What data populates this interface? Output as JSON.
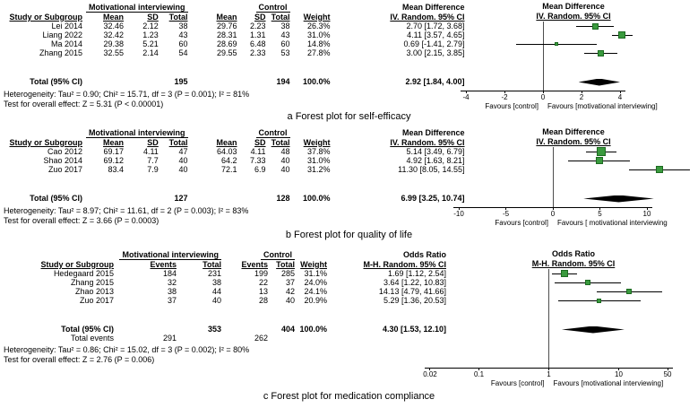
{
  "chart_data": [
    {
      "type": "forest",
      "outcome": "self-efficacy",
      "caption": "a Forest plot for self-efficacy",
      "group1": "Motivational interviewing",
      "group2": "Control",
      "columns": {
        "study": "Study or Subgroup",
        "mean": "Mean",
        "sd": "SD",
        "total": "Total",
        "weight": "Weight"
      },
      "effect_header": "Mean Difference",
      "effect_sub": "IV. Random. 95% CI",
      "rows": [
        {
          "study": "Lei 2014",
          "mean1": "32.46",
          "sd1": "2.12",
          "total1": "38",
          "mean2": "29.76",
          "sd2": "2.23",
          "total2": "38",
          "weight": "26.3%",
          "effect_text": "2.70 [1.72, 3.68]",
          "est": 2.7,
          "lo": 1.72,
          "hi": 3.68,
          "weight_pct": 26.3
        },
        {
          "study": "Liang 2022",
          "mean1": "32.42",
          "sd1": "1.23",
          "total1": "43",
          "mean2": "28.31",
          "sd2": "1.31",
          "total2": "43",
          "weight": "31.0%",
          "effect_text": "4.11 [3.57, 4.65]",
          "est": 4.11,
          "lo": 3.57,
          "hi": 4.65,
          "weight_pct": 31.0
        },
        {
          "study": "Ma 2014",
          "mean1": "29.38",
          "sd1": "5.21",
          "total1": "60",
          "mean2": "28.69",
          "sd2": "6.48",
          "total2": "60",
          "weight": "14.8%",
          "effect_text": "0.69 [-1.41, 2.79]",
          "est": 0.69,
          "lo": -1.41,
          "hi": 2.79,
          "weight_pct": 14.8
        },
        {
          "study": "Zhang 2015",
          "mean1": "32.55",
          "sd1": "2.14",
          "total1": "54",
          "mean2": "29.55",
          "sd2": "2.33",
          "total2": "53",
          "weight": "27.8%",
          "effect_text": "3.00 [2.15, 3.85]",
          "est": 3.0,
          "lo": 2.15,
          "hi": 3.85,
          "weight_pct": 27.8
        }
      ],
      "total_row": {
        "label": "Total (95% CI)",
        "total1": "195",
        "total2": "194",
        "weight": "100.0%",
        "effect_text": "2.92 [1.84, 4.00]",
        "est": 2.92,
        "lo": 1.84,
        "hi": 4.0
      },
      "heterogeneity": "Heterogeneity: Tau² = 0.90; Chi² = 15.71, df = 3 (P = 0.001); I² = 81%",
      "overall_test": "Test for overall effect: Z = 5.31 (P < 0.00001)",
      "axis": {
        "scale": "linear",
        "line_at": 0,
        "ticks": [
          "-4",
          "-2",
          "0",
          "2",
          "4"
        ],
        "tick_values": [
          -4,
          -2,
          0,
          2,
          4
        ]
      },
      "favours_left": "Favours [control]",
      "favours_right": "Favours [motivational interviewing]"
    },
    {
      "type": "forest",
      "outcome": "quality of life",
      "caption": "b Forest plot for quality of life",
      "group1": "Motivational interviewing",
      "group2": "Control",
      "columns": {
        "study": "Study or Subgroup",
        "mean": "Mean",
        "sd": "SD",
        "total": "Total",
        "weight": "Weight"
      },
      "effect_header": "Mean Difference",
      "effect_sub": "IV. Random. 95% CI",
      "rows": [
        {
          "study": "Cao 2012",
          "mean1": "69.17",
          "sd1": "4.11",
          "total1": "47",
          "mean2": "64.03",
          "sd2": "4.11",
          "total2": "48",
          "weight": "37.8%",
          "effect_text": "5.14 [3.49, 6.79]",
          "est": 5.14,
          "lo": 3.49,
          "hi": 6.79,
          "weight_pct": 37.8
        },
        {
          "study": "Shao 2014",
          "mean1": "69.12",
          "sd1": "7.7",
          "total1": "40",
          "mean2": "64.2",
          "sd2": "7.33",
          "total2": "40",
          "weight": "31.0%",
          "effect_text": "4.92 [1.63, 8.21]",
          "est": 4.92,
          "lo": 1.63,
          "hi": 8.21,
          "weight_pct": 31.0
        },
        {
          "study": "Zuo 2017",
          "mean1": "83.4",
          "sd1": "7.9",
          "total1": "40",
          "mean2": "72.1",
          "sd2": "6.9",
          "total2": "40",
          "weight": "31.2%",
          "effect_text": "11.30 [8.05, 14.55]",
          "est": 11.3,
          "lo": 8.05,
          "hi": 14.55,
          "weight_pct": 31.2
        }
      ],
      "total_row": {
        "label": "Total (95% CI)",
        "total1": "127",
        "total2": "128",
        "weight": "100.0%",
        "effect_text": "6.99 [3.25, 10.74]",
        "est": 6.99,
        "lo": 3.25,
        "hi": 10.74
      },
      "heterogeneity": "Heterogeneity: Tau² = 8.97; Chi² = 11.61, df = 2 (P = 0.003); I² = 83%",
      "overall_test": "Test for overall effect: Z = 3.66 (P = 0.0003)",
      "axis": {
        "scale": "linear",
        "line_at": 0,
        "ticks": [
          "-10",
          "-5",
          "0",
          "5",
          "10"
        ],
        "tick_values": [
          -10,
          -5,
          0,
          5,
          10
        ]
      },
      "favours_left": "Favours [control]",
      "favours_right": "Favours [ motivational interviewing"
    },
    {
      "type": "forest",
      "outcome": "medication compliance",
      "caption": "c Forest plot for medication compliance",
      "group1": "Motivational interviewing",
      "group2": "Control",
      "columns": {
        "study": "Study or Subgroup",
        "events": "Events",
        "total": "Total",
        "weight": "Weight"
      },
      "effect_header": "Odds Ratio",
      "effect_sub": "M-H. Random. 95% CI",
      "rows": [
        {
          "study": "Hedegaard 2015",
          "events1": "184",
          "total1": "231",
          "events2": "199",
          "total2": "285",
          "weight": "31.1%",
          "effect_text": "1.69 [1.12, 2.54]",
          "est": 1.69,
          "lo": 1.12,
          "hi": 2.54,
          "weight_pct": 31.1
        },
        {
          "study": "Zhang 2015",
          "events1": "32",
          "total1": "38",
          "events2": "22",
          "total2": "37",
          "weight": "24.0%",
          "effect_text": "3.64 [1.22, 10.83]",
          "est": 3.64,
          "lo": 1.22,
          "hi": 10.83,
          "weight_pct": 24.0
        },
        {
          "study": "Zhao 2013",
          "events1": "38",
          "total1": "44",
          "events2": "13",
          "total2": "42",
          "weight": "24.1%",
          "effect_text": "14.13 [4.79, 41.66]",
          "est": 14.13,
          "lo": 4.79,
          "hi": 41.66,
          "weight_pct": 24.1
        },
        {
          "study": "Zuo 2017",
          "events1": "37",
          "total1": "40",
          "events2": "28",
          "total2": "40",
          "weight": "20.9%",
          "effect_text": "5.29 [1.36, 20.53]",
          "est": 5.29,
          "lo": 1.36,
          "hi": 20.53,
          "weight_pct": 20.9
        }
      ],
      "total_row": {
        "label": "Total (95% CI)",
        "total1": "353",
        "total2": "404",
        "weight": "100.0%",
        "effect_text": "4.30 [1.53, 12.10]",
        "est": 4.3,
        "lo": 1.53,
        "hi": 12.1
      },
      "total_events": {
        "label": "Total events",
        "events1": "291",
        "events2": "262"
      },
      "heterogeneity": "Heterogeneity: Tau² = 0.86; Chi² = 15.02, df = 3 (P = 0.002); I² = 80%",
      "overall_test": "Test for overall effect: Z = 2.76 (P = 0.006)",
      "axis": {
        "scale": "log",
        "line_at": 1,
        "ticks": [
          "0.02",
          "0.1",
          "1",
          "10",
          "50"
        ],
        "tick_values": [
          0.02,
          0.1,
          1,
          10,
          50
        ]
      },
      "favours_left": "Favours [control]",
      "favours_right": "Favours [motivational interviewing]"
    }
  ]
}
